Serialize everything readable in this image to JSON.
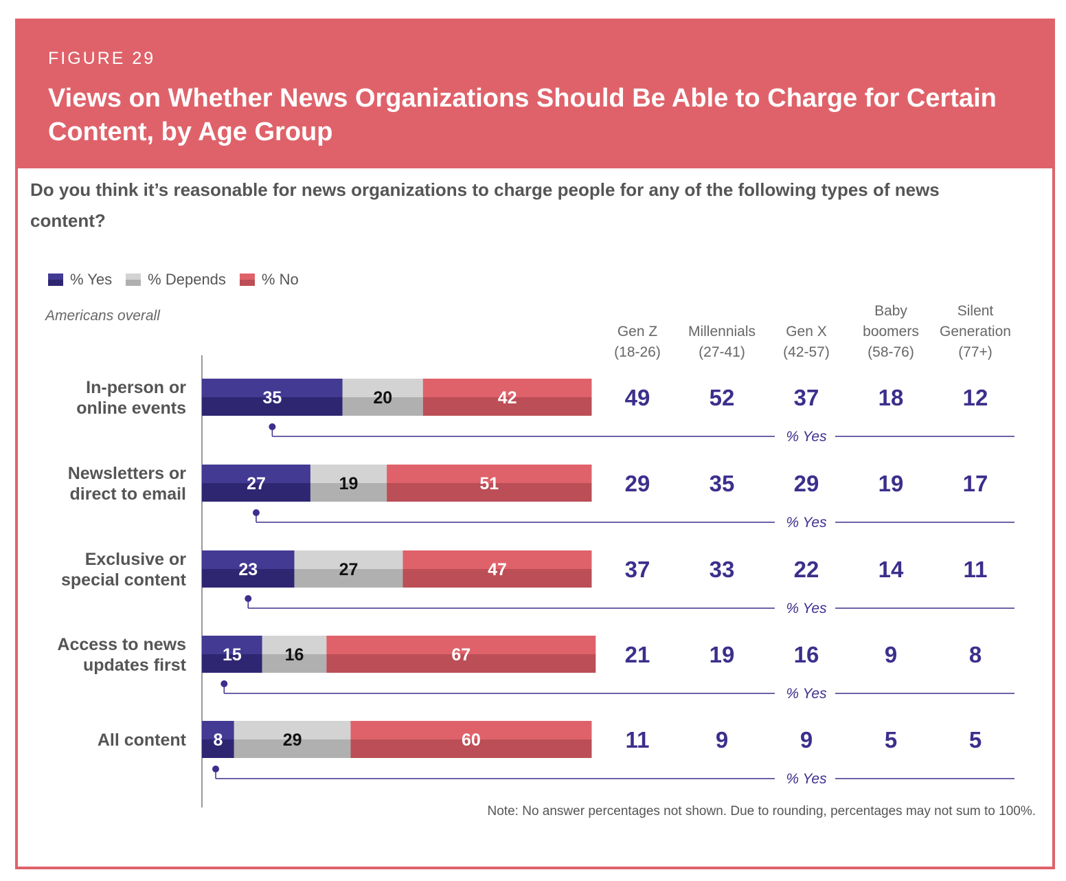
{
  "figure_label": "FIGURE 29",
  "title": "Views on Whether News Organizations Should Be Able to Charge for Certain Content, by Age Group",
  "question": "Do you think it’s reasonable for news organizations to charge people for any of the following types of news content?",
  "legend": [
    {
      "label": "% Yes",
      "color": "#433a93"
    },
    {
      "label": "% Depends",
      "color": "#c8c8c8"
    },
    {
      "label": "% No",
      "color": "#df626a"
    }
  ],
  "overall_label": "Americans overall",
  "yes_tag": "% Yes",
  "age_groups": [
    {
      "name": "Gen Z",
      "range": "(18-26)"
    },
    {
      "name": "Millennials",
      "range": "(27-41)"
    },
    {
      "name": "Gen X",
      "range": "(42-57)"
    },
    {
      "name": "Baby boomers",
      "range": "(58-76)"
    },
    {
      "name": "Silent Generation",
      "range": "(77+)"
    }
  ],
  "note": "Note: No answer percentages not shown. Due to rounding, percentages may not sum to 100%.",
  "colors": {
    "yes_top": "#433a93",
    "yes_bottom": "#2f2672",
    "dep_top": "#d3d3d3",
    "dep_bottom": "#b0b0b0",
    "no_top": "#df626a",
    "no_bottom": "#bb4e56",
    "accent": "#3b2f8c"
  },
  "chart_data": {
    "type": "bar",
    "stacked": true,
    "orientation": "horizontal",
    "categories": [
      [
        "In-person or",
        "online events"
      ],
      [
        "Newsletters or",
        "direct to email"
      ],
      [
        "Exclusive or",
        "special content"
      ],
      [
        "Access to news",
        "updates first"
      ],
      [
        "All content"
      ]
    ],
    "series": [
      {
        "name": "% Yes",
        "values": [
          35,
          27,
          23,
          15,
          8
        ]
      },
      {
        "name": "% Depends",
        "values": [
          20,
          19,
          27,
          16,
          29
        ]
      },
      {
        "name": "% No",
        "values": [
          42,
          51,
          47,
          67,
          60
        ]
      }
    ],
    "yes_by_age": [
      [
        49,
        52,
        37,
        18,
        12
      ],
      [
        29,
        35,
        29,
        19,
        17
      ],
      [
        37,
        33,
        22,
        14,
        11
      ],
      [
        21,
        19,
        16,
        9,
        8
      ],
      [
        11,
        9,
        9,
        5,
        5
      ]
    ],
    "xlim": [
      0,
      100
    ]
  }
}
